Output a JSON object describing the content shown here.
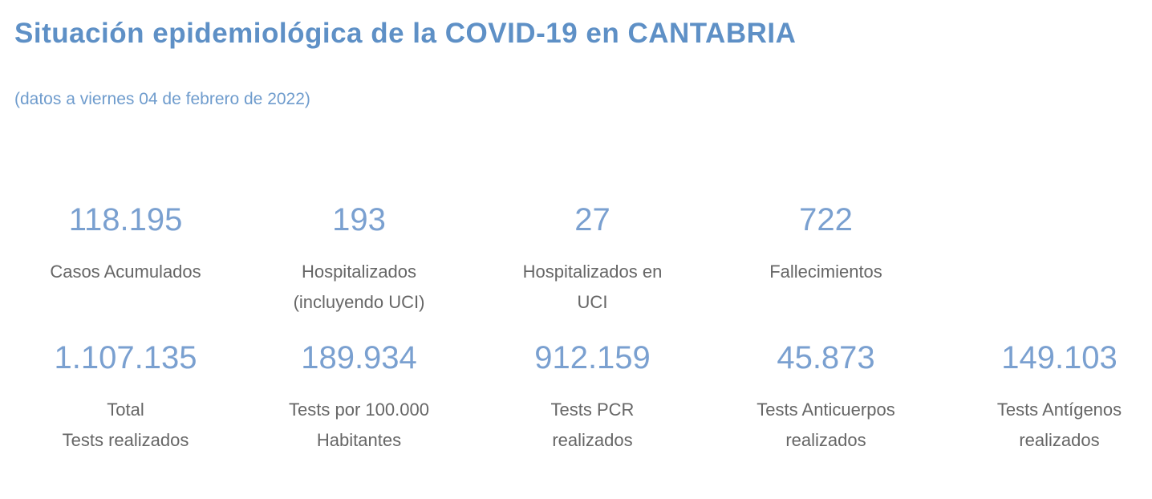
{
  "header": {
    "title": "Situación epidemiológica de la COVID-19 en CANTABRIA",
    "subtitle": "(datos a viernes 04 de febrero de 2022)"
  },
  "colors": {
    "background": "#ffffff",
    "title": "#5e90c6",
    "subtitle": "#6f9ccd",
    "value": "#7aa0d0",
    "label": "#666666"
  },
  "stats": {
    "row1": [
      {
        "value": "118.195",
        "label_line1": "Casos Acumulados",
        "label_line2": ""
      },
      {
        "value": "193",
        "label_line1": "Hospitalizados",
        "label_line2": "(incluyendo UCI)"
      },
      {
        "value": "27",
        "label_line1": "Hospitalizados en",
        "label_line2": "UCI"
      },
      {
        "value": "722",
        "label_line1": "Fallecimientos",
        "label_line2": ""
      }
    ],
    "row2": [
      {
        "value": "1.107.135",
        "label_line1": "Total",
        "label_line2": "Tests realizados"
      },
      {
        "value": "189.934",
        "label_line1": "Tests por 100.000",
        "label_line2": "Habitantes"
      },
      {
        "value": "912.159",
        "label_line1": "Tests PCR",
        "label_line2": "realizados"
      },
      {
        "value": "45.873",
        "label_line1": "Tests Anticuerpos",
        "label_line2": "realizados"
      },
      {
        "value": "149.103",
        "label_line1": "Tests Antígenos",
        "label_line2": "realizados"
      }
    ]
  },
  "chart_data": {
    "type": "table",
    "title": "Situación epidemiológica de la COVID-19 en CANTABRIA",
    "subtitle": "(datos a viernes 04 de febrero de 2022)",
    "metrics": [
      {
        "label": "Casos Acumulados",
        "value": 118195
      },
      {
        "label": "Hospitalizados (incluyendo UCI)",
        "value": 193
      },
      {
        "label": "Hospitalizados en UCI",
        "value": 27
      },
      {
        "label": "Fallecimientos",
        "value": 722
      },
      {
        "label": "Total Tests realizados",
        "value": 1107135
      },
      {
        "label": "Tests por 100.000 Habitantes",
        "value": 189934
      },
      {
        "label": "Tests PCR realizados",
        "value": 912159
      },
      {
        "label": "Tests Anticuerpos realizados",
        "value": 45873
      },
      {
        "label": "Tests Antígenos realizados",
        "value": 149103
      }
    ]
  }
}
